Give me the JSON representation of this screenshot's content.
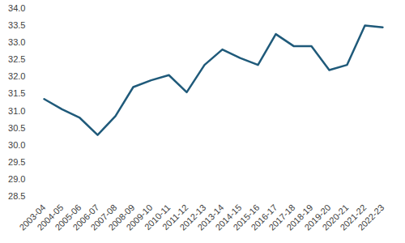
{
  "chart_data": {
    "type": "line",
    "categories": [
      "2003-04",
      "2004-05",
      "2005-06",
      "2006-07",
      "2007-08",
      "2008-09",
      "2009-10",
      "2010-11",
      "2011-12",
      "2012-13",
      "2013-14",
      "2014-15",
      "2015-16",
      "2016-17",
      "2017-18",
      "2018-19",
      "2019-20",
      "2020-21",
      "2021-22",
      "2022-23"
    ],
    "values": [
      31.35,
      31.05,
      30.8,
      30.3,
      30.85,
      31.7,
      31.9,
      32.05,
      31.55,
      32.35,
      32.8,
      32.55,
      32.35,
      33.25,
      32.9,
      32.9,
      32.2,
      32.35,
      33.5,
      33.45
    ],
    "color": "#1f5a7a",
    "ylim": [
      28.5,
      34
    ],
    "yticks": [
      28.5,
      {
        "value": 29,
        "label": "29.0"
      },
      29.5,
      {
        "value": 30,
        "label": "30.0"
      },
      30.5,
      {
        "value": 31,
        "label": "31.0"
      },
      31.5,
      {
        "value": 32,
        "label": "32.0"
      },
      32.5,
      {
        "value": 33,
        "label": "33.0"
      },
      33.5,
      {
        "value": 34,
        "label": "34.0"
      }
    ],
    "grid": false
  }
}
